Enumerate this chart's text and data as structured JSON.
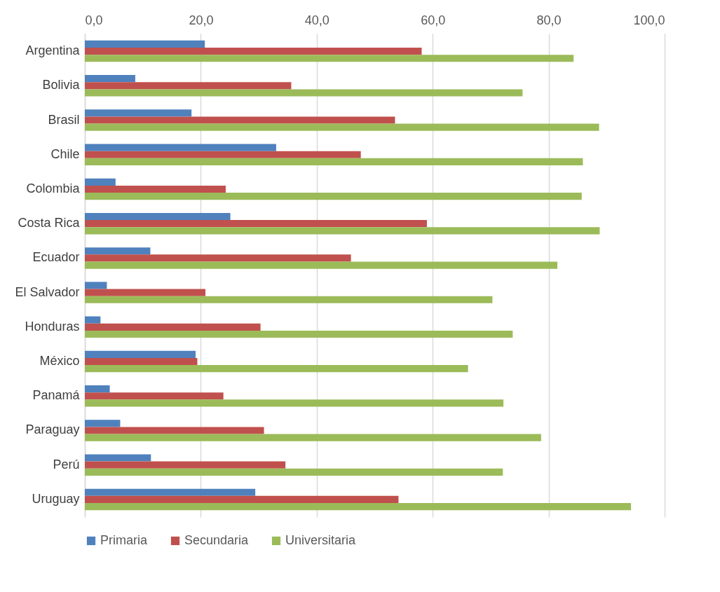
{
  "chart_data": {
    "type": "bar",
    "orientation": "horizontal",
    "categories": [
      "Argentina",
      "Bolivia",
      "Brasil",
      "Chile",
      "Colombia",
      "Costa Rica",
      "Ecuador",
      "El Salvador",
      "Honduras",
      "México",
      "Panamá",
      "Paraguay",
      "Perú",
      "Uruguay"
    ],
    "series": [
      {
        "name": "Primaria",
        "color": "#4f81bd",
        "values": [
          20.7,
          8.7,
          18.4,
          33.0,
          5.3,
          25.1,
          11.3,
          3.8,
          2.7,
          19.1,
          4.3,
          6.1,
          11.4,
          29.4
        ]
      },
      {
        "name": "Secundaria",
        "color": "#c0504d",
        "values": [
          58.1,
          35.6,
          53.5,
          47.6,
          24.3,
          59.0,
          45.9,
          20.8,
          30.3,
          19.4,
          23.9,
          30.9,
          34.6,
          54.1
        ]
      },
      {
        "name": "Universitaria",
        "color": "#9bbb59",
        "values": [
          84.3,
          75.5,
          88.7,
          85.9,
          85.7,
          88.8,
          81.5,
          70.3,
          73.8,
          66.1,
          72.2,
          78.7,
          72.1,
          94.2
        ]
      }
    ],
    "xlim": [
      0,
      100
    ],
    "xticks": [
      {
        "value": 0,
        "label": "0,0"
      },
      {
        "value": 20,
        "label": "20,0"
      },
      {
        "value": 40,
        "label": "40,0"
      },
      {
        "value": 60,
        "label": "60,0"
      },
      {
        "value": 80,
        "label": "80,0"
      },
      {
        "value": 100,
        "label": "100,0"
      }
    ],
    "grid": "x",
    "legend": "bottom"
  }
}
